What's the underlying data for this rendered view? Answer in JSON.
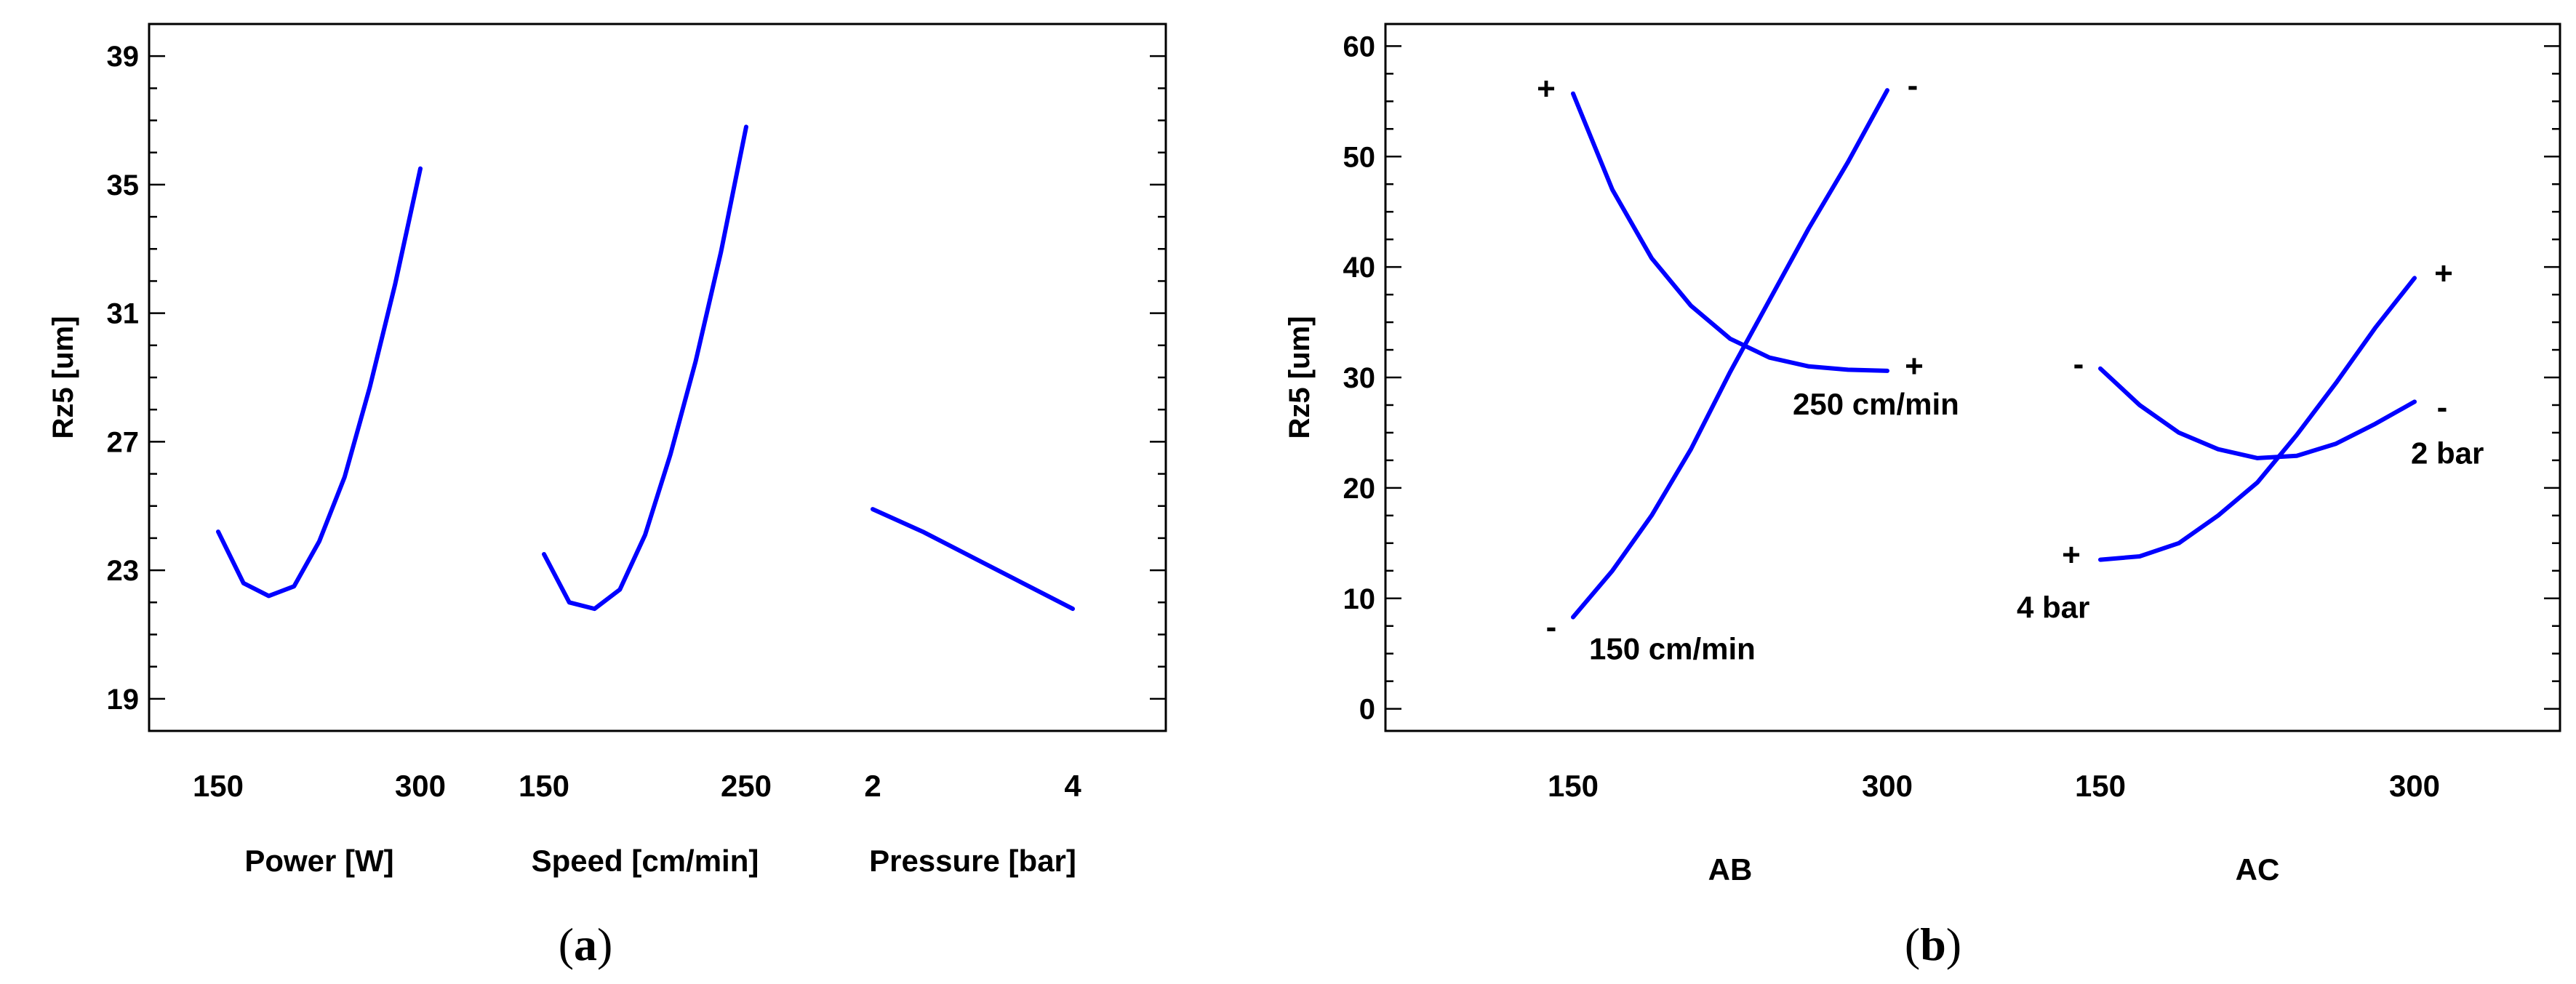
{
  "colors": {
    "curve": "#0000ff",
    "axis": "#000000",
    "background": "#ffffff"
  },
  "chart_data": [
    {
      "id": "a",
      "type": "line",
      "caption_open": "(",
      "caption_letter": "a",
      "caption_close": ")",
      "ylabel": "Rz5 [um]",
      "ylim": [
        18,
        40
      ],
      "yticks": [
        "19",
        "23",
        "27",
        "31",
        "35",
        "39"
      ],
      "grid": false,
      "factors": [
        {
          "name": "Power [W]",
          "low_label": "150",
          "high_label": "300",
          "x": [
            150,
            168.75,
            187.5,
            206.25,
            225,
            243.75,
            262.5,
            281.25,
            300
          ],
          "y": [
            24.2,
            22.6,
            22.2,
            22.5,
            23.9,
            25.9,
            28.7,
            31.9,
            35.5
          ]
        },
        {
          "name": "Speed [cm/min]",
          "low_label": "150",
          "high_label": "250",
          "x": [
            150,
            162.5,
            175,
            187.5,
            200,
            212.5,
            225,
            237.5,
            250
          ],
          "y": [
            23.5,
            22.0,
            21.8,
            22.4,
            24.1,
            26.6,
            29.5,
            32.9,
            36.8
          ]
        },
        {
          "name": "Pressure [bar]",
          "low_label": "2",
          "high_label": "4",
          "x": [
            2,
            2.5,
            3,
            3.5,
            4
          ],
          "y": [
            24.9,
            24.2,
            23.4,
            22.6,
            21.8
          ]
        }
      ]
    },
    {
      "id": "b",
      "type": "line",
      "caption_open": "(",
      "caption_letter": "b",
      "caption_close": ")",
      "ylabel": "Rz5 [um]",
      "ylim": [
        -2,
        62
      ],
      "yticks": [
        "0",
        "10",
        "20",
        "30",
        "40",
        "50",
        "60"
      ],
      "grid": false,
      "groups": [
        {
          "name": "AB",
          "low_label": "150",
          "high_label": "300",
          "series": [
            {
              "name": "150 cm/min",
              "x": [
                150,
                168.75,
                187.5,
                206.25,
                225,
                243.75,
                262.5,
                281.25,
                300
              ],
              "y": [
                8.3,
                12.5,
                17.5,
                23.5,
                30.5,
                37.0,
                43.5,
                49.5,
                56.0
              ],
              "start_sign": "-",
              "end_sign": "-"
            },
            {
              "name": "250 cm/min",
              "x": [
                150,
                168.75,
                187.5,
                206.25,
                225,
                243.75,
                262.5,
                281.25,
                300
              ],
              "y": [
                55.7,
                47.0,
                40.8,
                36.5,
                33.5,
                31.8,
                31.0,
                30.7,
                30.6
              ],
              "start_sign": "+",
              "end_sign": "+"
            }
          ]
        },
        {
          "name": "AC",
          "low_label": "150",
          "high_label": "300",
          "series": [
            {
              "name": "2 bar",
              "x": [
                150,
                168.75,
                187.5,
                206.25,
                225,
                243.75,
                262.5,
                281.25,
                300
              ],
              "y": [
                30.8,
                27.5,
                25.0,
                23.5,
                22.7,
                22.9,
                24.0,
                25.8,
                27.8
              ],
              "start_sign": "-",
              "end_sign": "-"
            },
            {
              "name": "4 bar",
              "x": [
                150,
                168.75,
                187.5,
                206.25,
                225,
                243.75,
                262.5,
                281.25,
                300
              ],
              "y": [
                13.5,
                13.8,
                15.0,
                17.5,
                20.5,
                24.8,
                29.5,
                34.5,
                39.0
              ],
              "start_sign": "+",
              "end_sign": "+"
            }
          ]
        }
      ]
    }
  ]
}
